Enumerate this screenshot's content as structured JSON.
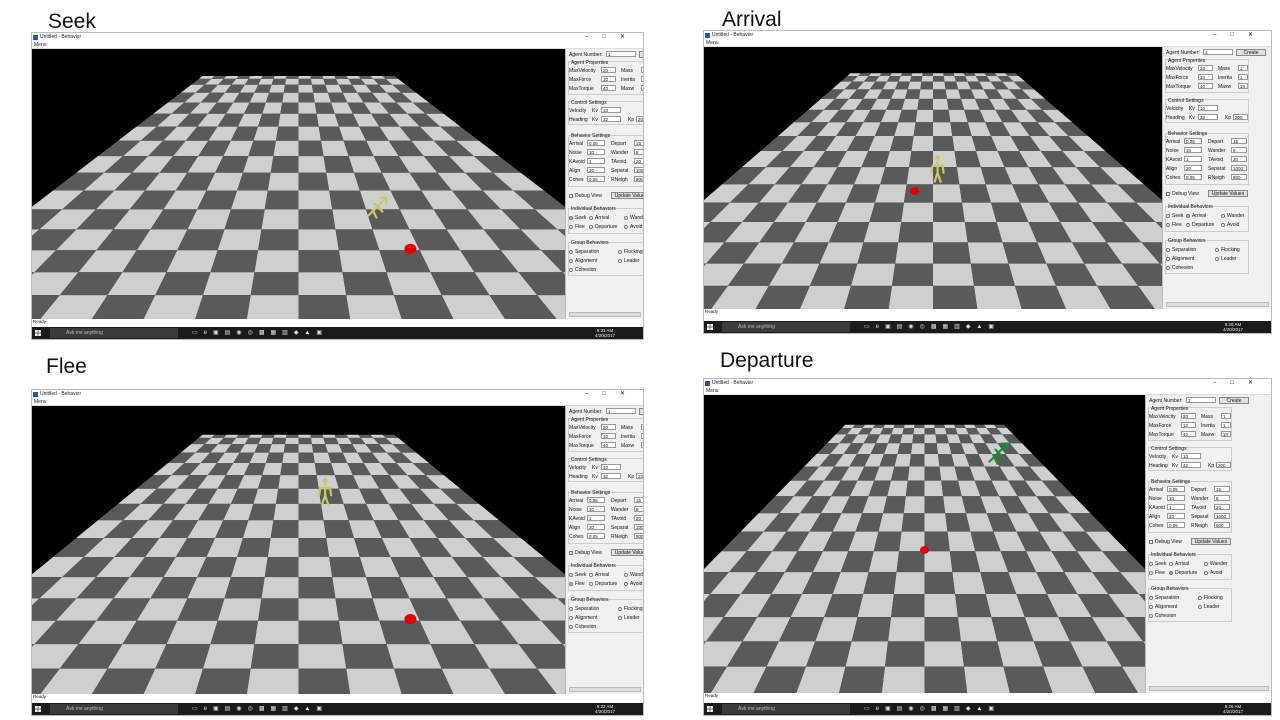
{
  "captions": {
    "seek": "Seek",
    "arrival": "Arrival",
    "flee": "Flee",
    "departure": "Departure"
  },
  "window": {
    "title": "Untitled - Behavior",
    "menu": "Menu",
    "status": "Ready"
  },
  "panel": {
    "agent_number_label": "Agent Number:",
    "agent_number_value": "1",
    "create_label": "Create",
    "agent_properties_title": "Agent Properties",
    "max_velocity_label": "MaxVelocity",
    "max_velocity_value": "20",
    "mass_label": "Mass",
    "mass_value": "1",
    "max_force_label": "MaxForce",
    "max_force_value": "10",
    "inertia_label": "Inertia",
    "inertia_value": "1",
    "max_torque_label": "MaxTorque",
    "max_torque_value": "40",
    "max_angular_label": "Maxw",
    "max_angular_value": "10",
    "control_settings_title": "Control Settings",
    "velocity_label": "Velocity",
    "kv_label": "Kv",
    "velocity_kv_value": "10",
    "heading_label": "Heading",
    "heading_kv_value": "32",
    "kp_label": "Kp",
    "heading_kp_value": "200",
    "behavior_settings_title": "Behavior Settings",
    "arrival_label": "Arrival",
    "arrival_value": "0.05",
    "depart_label": "Depart",
    "depart_value": "15",
    "noise_label": "Noise",
    "noise_value": "10",
    "wander_label": "Wander",
    "wander_value": "8",
    "kavoid_label": "KAvoid",
    "kavoid_value": "1",
    "tavoid_label": "TAvoid",
    "tavoid_value": "20",
    "align_label": "Align",
    "align_value": "20",
    "separat_label": "Separat",
    "separat_value": "1000",
    "cohes_label": "Cohes",
    "cohes_value": "0.05",
    "rneigh_label": "RNeigh",
    "rneigh_value": "800",
    "debug_view_label": "Debug View",
    "update_values_label": "Update Values",
    "individual_behaviors_title": "Individual Behaviors",
    "seek_label": "Seek",
    "arrival_radio_label": "Arrival",
    "wander_radio_label": "Wander",
    "flee_label": "Flee",
    "departure_label": "Departure",
    "avoid_label": "Avoid",
    "group_behaviors_title": "Group Behaviors",
    "separation_label": "Separation",
    "flocking_label": "Flocking",
    "alignment_label": "Alignment",
    "leader_label": "Leader",
    "cohesion_label": "Cohesion"
  },
  "taskbar": {
    "search_placeholder": "Ask me anything",
    "seek_time": "9:31 AM",
    "seek_date": "4/20/2017",
    "arrival_time": "9:28 AM",
    "arrival_date": "4/20/2017",
    "flee_time": "9:32 AM",
    "flee_date": "4/20/2017",
    "departure_time": "9:26 AM",
    "departure_date": "4/20/2017"
  },
  "selected_behavior": {
    "seek": "Seek",
    "arrival": "Arrival",
    "flee": "Flee",
    "departure": "Departure"
  },
  "colors": {
    "target": "#e00000",
    "agent_yellow": "#c8c86a",
    "agent_green": "#1d8a3a",
    "tile_dark": "#5a5a5a",
    "tile_light": "#cfcfcf"
  }
}
